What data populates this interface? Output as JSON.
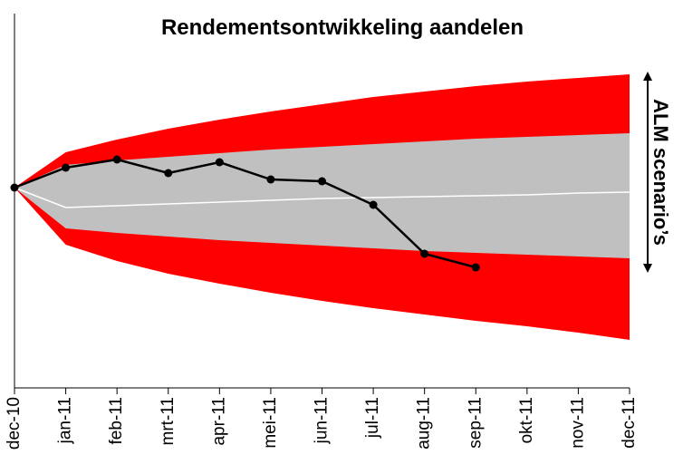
{
  "chart_data": {
    "type": "fan",
    "title": "Rendementsontwikkeling aandelen",
    "annotation": "ALM scenario’s",
    "categories": [
      "dec-10",
      "jan-11",
      "feb-11",
      "mrt-11",
      "apr-11",
      "mei-11",
      "jun-11",
      "jul-11",
      "aug-11",
      "sep-11",
      "okt-11",
      "nov-11",
      "dec-11"
    ],
    "ylim": [
      -221,
      192
    ],
    "series": [
      {
        "color": "#ff0000",
        "values": [
          0,
          39,
          53,
          65,
          75,
          84,
          92,
          100,
          106,
          112,
          117,
          121,
          125
        ]
      },
      {
        "color": "#c0c0c0",
        "values": [
          0,
          25,
          30,
          34,
          38,
          42,
          45,
          48,
          51,
          54,
          56,
          58,
          60
        ]
      },
      {
        "color": "#ffffff",
        "values": [
          0,
          -22,
          -20,
          -18,
          -16,
          -14,
          -12,
          -11,
          -10,
          -9,
          -8,
          -6,
          -5
        ]
      },
      {
        "color": "#c0c0c0",
        "values": [
          0,
          -45,
          -50,
          -54,
          -58,
          -61,
          -64,
          -67,
          -70,
          -72,
          -74,
          -76,
          -78
        ]
      },
      {
        "color": "#ff0000",
        "values": [
          0,
          -63,
          -81,
          -95,
          -106,
          -116,
          -125,
          -133,
          -140,
          -147,
          -153,
          -160,
          -168
        ]
      },
      {
        "color": "#000000",
        "values": [
          0,
          22,
          31,
          16,
          28,
          9,
          7,
          -19,
          -73,
          -88,
          null,
          null,
          null
        ]
      }
    ]
  }
}
